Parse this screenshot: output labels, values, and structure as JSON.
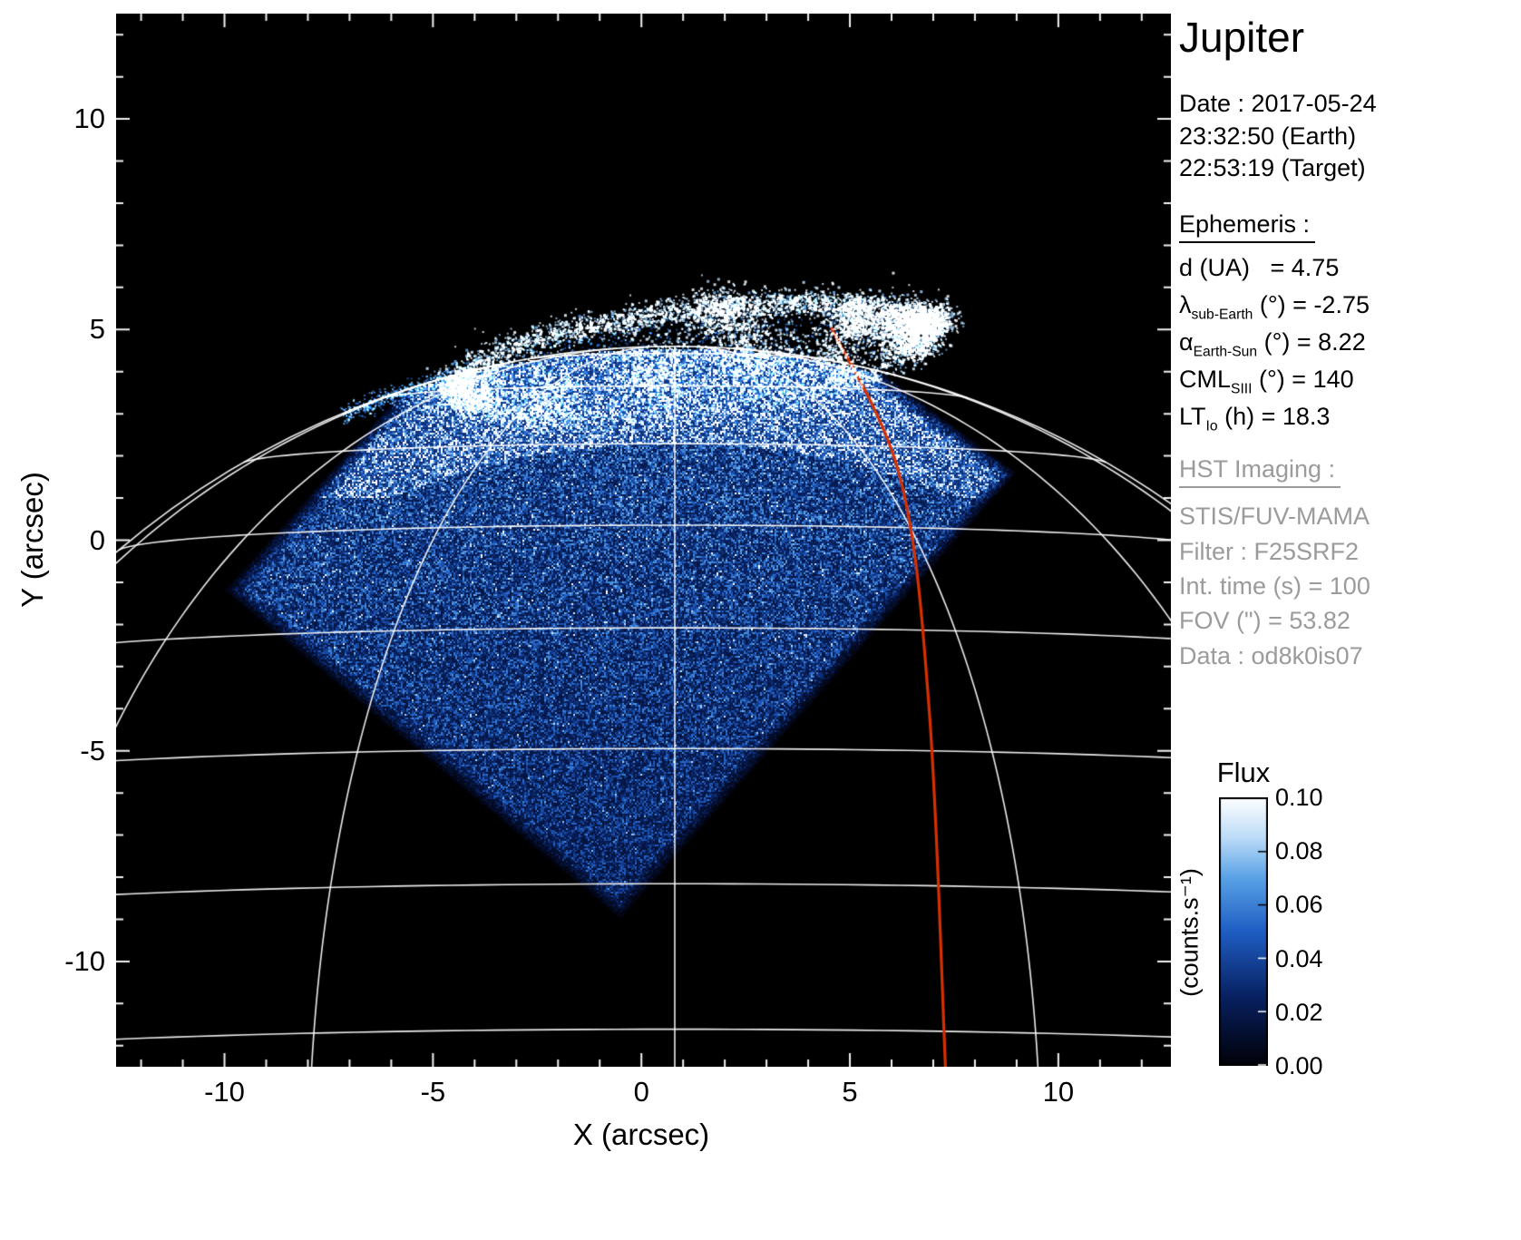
{
  "title": "Jupiter",
  "info_panel": {
    "date_label": "Date : 2017-05-24",
    "time_earth": "23:32:50 (Earth)",
    "time_target": "22:53:19 (Target)",
    "ephemeris_heading": "Ephemeris :",
    "ephemeris_rows": [
      {
        "pre": "d (UA)",
        "sub": "",
        "post": "   = 4.75"
      },
      {
        "pre": "λ",
        "sub": "sub-Earth",
        "post": " (°) = -2.75"
      },
      {
        "pre": "α",
        "sub": "Earth-Sun",
        "post": " (°) = 8.22"
      },
      {
        "pre": "CML",
        "sub": "SIII",
        "post": " (°) = 140"
      },
      {
        "pre": "LT",
        "sub": "Io",
        "post": " (h) = 18.3"
      }
    ],
    "hst_heading": "HST Imaging :",
    "hst_rows": [
      "STIS/FUV-MAMA",
      "Filter : F25SRF2",
      "Int. time (s) = 100",
      "FOV (\") = 53.82",
      "Data : od8k0is07"
    ]
  },
  "axes": {
    "x_label": "X (arcsec)",
    "y_label": "Y (arcsec)",
    "x_tick_values": [
      -10,
      -5,
      0,
      5,
      10
    ],
    "x_tick_labels": [
      "-10",
      "-5",
      "0",
      "5",
      "10"
    ],
    "y_tick_values": [
      -10,
      -5,
      0,
      5,
      10
    ],
    "y_tick_labels": [
      "-10",
      "-5",
      "0",
      "5",
      "10"
    ]
  },
  "colorbar": {
    "title": "Flux",
    "unit": "(counts.s⁻¹)",
    "ticks": [
      "0.10",
      "0.08",
      "0.06",
      "0.04",
      "0.02",
      "0.00"
    ],
    "min": 0.0,
    "max": 0.1
  },
  "colors": {
    "page_bg": "#ffffff",
    "plot_bg": "#000000",
    "graticule": "#ffffff",
    "io_track": "#d63000",
    "text": "#000000",
    "muted_text": "#9b9b9b",
    "colormap_stops": [
      {
        "at": 0.0,
        "hex": "#010108"
      },
      {
        "at": 0.25,
        "hex": "#08205f"
      },
      {
        "at": 0.5,
        "hex": "#1f5ec4"
      },
      {
        "at": 0.7,
        "hex": "#5aa2e6"
      },
      {
        "at": 0.85,
        "hex": "#bcdcf8"
      },
      {
        "at": 1.0,
        "hex": "#ffffff"
      }
    ]
  },
  "chart_data": {
    "type": "heatmap",
    "title": "Jupiter HST FUV auroral image (north)",
    "xlabel": "X (arcsec)",
    "ylabel": "Y (arcsec)",
    "xlim": [
      -12.6,
      12.7
    ],
    "ylim": [
      -12.5,
      12.5
    ],
    "grid": true,
    "colorbar": {
      "label": "Flux (counts.s-1)",
      "range": [
        0.0,
        0.1
      ],
      "tick_step": 0.02
    },
    "detector_fov_corners_arcsec": [
      [
        -10.0,
        -1.2
      ],
      [
        -0.5,
        -9.0
      ],
      [
        9.0,
        1.6
      ],
      [
        -0.9,
        8.9
      ]
    ],
    "planet": {
      "center_arcsec": [
        0.8,
        -16.2
      ],
      "radius_arcsec": 20.8,
      "sub_earth_lat_deg": -2.75,
      "cml_deg": 140
    },
    "graticule": {
      "lat_min_deg": 10,
      "lat_max_deg": 80,
      "lat_step_deg": 10,
      "lon_min_deg": -75,
      "lon_max_deg": 75,
      "lon_step_deg": 25
    },
    "aurora_oval": {
      "center_arcsec": [
        1.2,
        4.25
      ],
      "semi_major": 5.7,
      "semi_minor": 1.2,
      "tilt_deg": 7
    },
    "aurora_patches": [
      [
        6.35,
        4.95,
        0.42,
        1000
      ],
      [
        5.15,
        5.2,
        0.3,
        450
      ],
      [
        -3.95,
        3.5,
        0.38,
        400
      ],
      [
        2.0,
        5.3,
        0.42,
        420
      ],
      [
        2.7,
        4.35,
        0.6,
        600
      ],
      [
        0.4,
        3.95,
        0.55,
        450
      ],
      [
        7.05,
        5.25,
        0.26,
        380
      ],
      [
        4.6,
        4.3,
        0.5,
        380
      ],
      [
        -2.2,
        3.35,
        0.45,
        300
      ]
    ],
    "io_track_arcsec": [
      [
        4.55,
        5.05
      ],
      [
        6.2,
        1.5
      ],
      [
        6.9,
        -4.0
      ],
      [
        7.3,
        -12.7
      ]
    ]
  }
}
